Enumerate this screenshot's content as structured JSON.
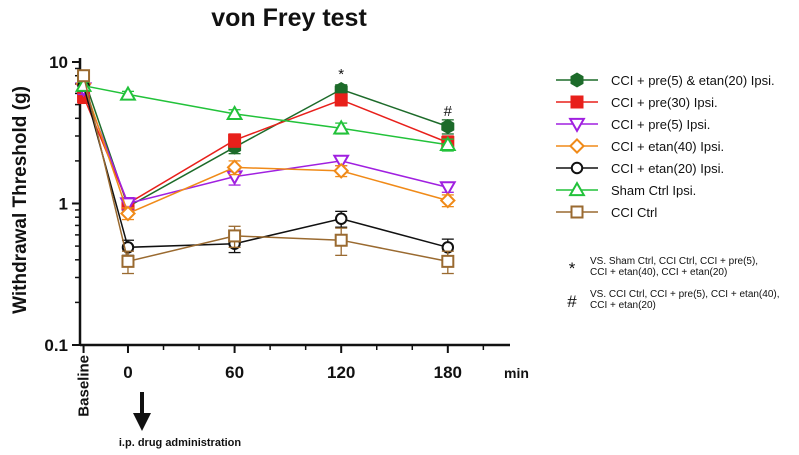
{
  "chart_data": {
    "type": "line",
    "title": "von Frey test",
    "ylabel": "Withdrawal Threshold (g)",
    "xunit": "min",
    "y_scale": "log",
    "ylim": [
      0.1,
      10
    ],
    "yticks": [
      {
        "value": 0.1,
        "label": "0.1"
      },
      {
        "value": 1,
        "label": "1"
      },
      {
        "value": 10,
        "label": "10"
      }
    ],
    "xticks": [
      {
        "x": -25,
        "label": "Baseline"
      },
      {
        "x": 0,
        "label": "0"
      },
      {
        "x": 60,
        "label": "60"
      },
      {
        "x": 120,
        "label": "120"
      },
      {
        "x": 180,
        "label": "180"
      }
    ],
    "xlim": [
      -27,
      215
    ],
    "series": [
      {
        "name": "CCI + pre(5) & etan(20) Ipsi.",
        "color": "#1d6b2a",
        "marker": "hexagon",
        "filled": true,
        "points": [
          {
            "x": -25,
            "y": 7.8,
            "err": 0.6
          },
          {
            "x": 0,
            "y": 0.95,
            "err": 0.08
          },
          {
            "x": 60,
            "y": 2.5,
            "err": 0.25
          },
          {
            "x": 120,
            "y": 6.4,
            "err": 0.5
          },
          {
            "x": 180,
            "y": 3.5,
            "err": 0.4
          }
        ]
      },
      {
        "name": "CCI + pre(30) Ipsi.",
        "color": "#e8201b",
        "marker": "square",
        "filled": true,
        "points": [
          {
            "x": -25,
            "y": 5.7,
            "err": 0.6
          },
          {
            "x": 0,
            "y": 1.0,
            "err": 0.1
          },
          {
            "x": 60,
            "y": 2.8,
            "err": 0.3
          },
          {
            "x": 120,
            "y": 5.4,
            "err": 0.5
          },
          {
            "x": 180,
            "y": 2.7,
            "err": 0.3
          }
        ]
      },
      {
        "name": "CCI + pre(5) Ipsi.",
        "color": "#a020e0",
        "marker": "triangle-down",
        "filled": false,
        "points": [
          {
            "x": -25,
            "y": 6.5,
            "err": 0.6
          },
          {
            "x": 0,
            "y": 1.0,
            "err": 0.1
          },
          {
            "x": 60,
            "y": 1.55,
            "err": 0.2
          },
          {
            "x": 120,
            "y": 2.0,
            "err": 0.15
          },
          {
            "x": 180,
            "y": 1.3,
            "err": 0.1
          }
        ]
      },
      {
        "name": "CCI + etan(40) Ipsi.",
        "color": "#f08a18",
        "marker": "diamond",
        "filled": false,
        "points": [
          {
            "x": -25,
            "y": 7.0,
            "err": 0.6
          },
          {
            "x": 0,
            "y": 0.85,
            "err": 0.08
          },
          {
            "x": 60,
            "y": 1.8,
            "err": 0.2
          },
          {
            "x": 120,
            "y": 1.7,
            "err": 0.15
          },
          {
            "x": 180,
            "y": 1.05,
            "err": 0.1
          }
        ]
      },
      {
        "name": "CCI + etan(20) Ipsi.",
        "color": "#111111",
        "marker": "circle",
        "filled": false,
        "points": [
          {
            "x": -25,
            "y": 6.8,
            "err": 0.6
          },
          {
            "x": 0,
            "y": 0.49,
            "err": 0.06
          },
          {
            "x": 60,
            "y": 0.52,
            "err": 0.07
          },
          {
            "x": 120,
            "y": 0.78,
            "err": 0.1
          },
          {
            "x": 180,
            "y": 0.49,
            "err": 0.07
          }
        ]
      },
      {
        "name": "Sham Ctrl Ipsi.",
        "color": "#22c23a",
        "marker": "triangle-up",
        "filled": false,
        "points": [
          {
            "x": -25,
            "y": 6.8,
            "err": 0.4
          },
          {
            "x": 0,
            "y": 5.9,
            "err": 0.3
          },
          {
            "x": 60,
            "y": 4.3,
            "err": 0.3
          },
          {
            "x": 120,
            "y": 3.4,
            "err": 0.3
          },
          {
            "x": 180,
            "y": 2.6,
            "err": 0.25
          }
        ]
      },
      {
        "name": "CCI Ctrl",
        "color": "#9a6a30",
        "marker": "square",
        "filled": false,
        "points": [
          {
            "x": -25,
            "y": 8.0,
            "err": 0.7
          },
          {
            "x": 0,
            "y": 0.39,
            "err": 0.07
          },
          {
            "x": 60,
            "y": 0.59,
            "err": 0.1
          },
          {
            "x": 120,
            "y": 0.55,
            "err": 0.12
          },
          {
            "x": 180,
            "y": 0.39,
            "err": 0.07
          }
        ]
      }
    ],
    "annotations": [
      {
        "text": "*",
        "x": 120,
        "y": 8.2
      },
      {
        "text": "#",
        "x": 180,
        "y": 4.5
      }
    ],
    "legend_position": "right",
    "notes": [
      {
        "symbol": "*",
        "lines": [
          "VS. Sham Ctrl, CCI Ctrl, CCI + pre(5),",
          "CCI + etan(40), CCI + etan(20)"
        ]
      },
      {
        "symbol": "#",
        "lines": [
          "VS. CCI Ctrl, CCI + pre(5), CCI + etan(40),",
          "CCI + etan(20)"
        ]
      }
    ],
    "arrow_label": "i.p. drug administration"
  }
}
